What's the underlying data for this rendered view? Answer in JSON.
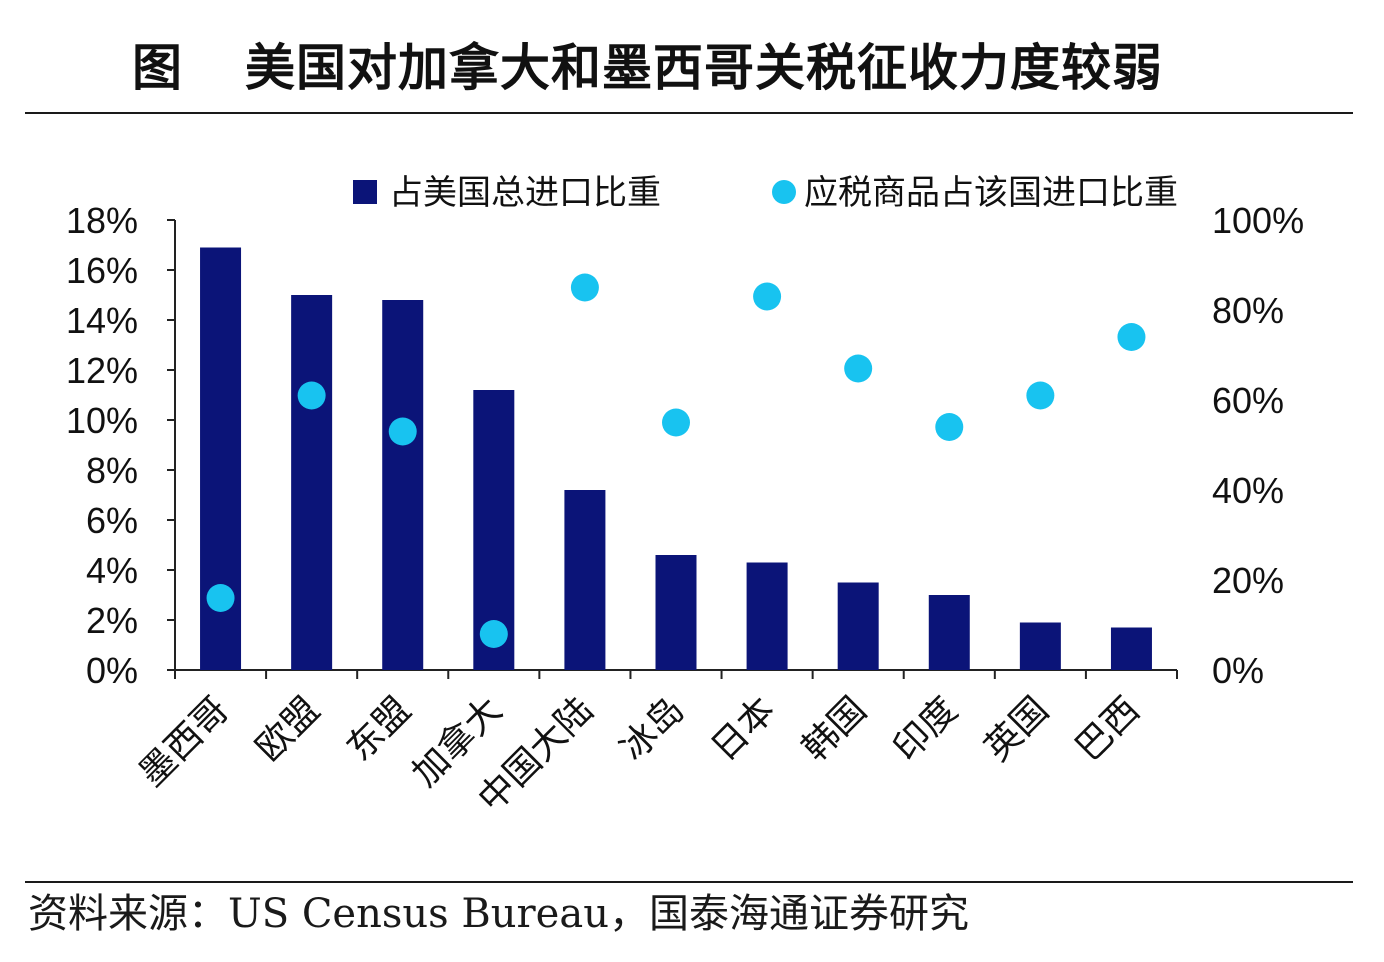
{
  "header": {
    "prefix": "图",
    "title": "美国对加拿大和墨西哥关税征收力度较弱"
  },
  "footer": {
    "source": "资料来源：US Census Bureau，国泰海通证券研究"
  },
  "colors": {
    "bar": "#0b1478",
    "dot": "#18c3f0",
    "axis": "#222222"
  },
  "chart_data": {
    "type": "bar",
    "categories": [
      "墨西哥",
      "欧盟",
      "东盟",
      "加拿大",
      "中国大陆",
      "冰岛",
      "日本",
      "韩国",
      "印度",
      "英国",
      "巴西"
    ],
    "series": [
      {
        "name": "占美国总进口比重",
        "type": "bar",
        "axis": "left",
        "values": [
          16.9,
          15.0,
          14.8,
          11.2,
          7.2,
          4.6,
          4.3,
          3.5,
          3.0,
          1.9,
          1.7
        ]
      },
      {
        "name": "应税商品占该国进口比重",
        "type": "scatter",
        "axis": "right",
        "values": [
          16,
          61,
          53,
          8,
          85,
          55,
          83,
          67,
          54,
          61,
          74
        ]
      }
    ],
    "y_left": {
      "min": 0,
      "max": 18,
      "step": 2,
      "ticks": [
        "0%",
        "2%",
        "4%",
        "6%",
        "8%",
        "10%",
        "12%",
        "14%",
        "16%",
        "18%"
      ]
    },
    "y_right": {
      "min": 0,
      "max": 100,
      "step": 20,
      "ticks": [
        "0%",
        "20%",
        "40%",
        "60%",
        "80%",
        "100%"
      ]
    },
    "legend_position": "top",
    "grid": false
  }
}
